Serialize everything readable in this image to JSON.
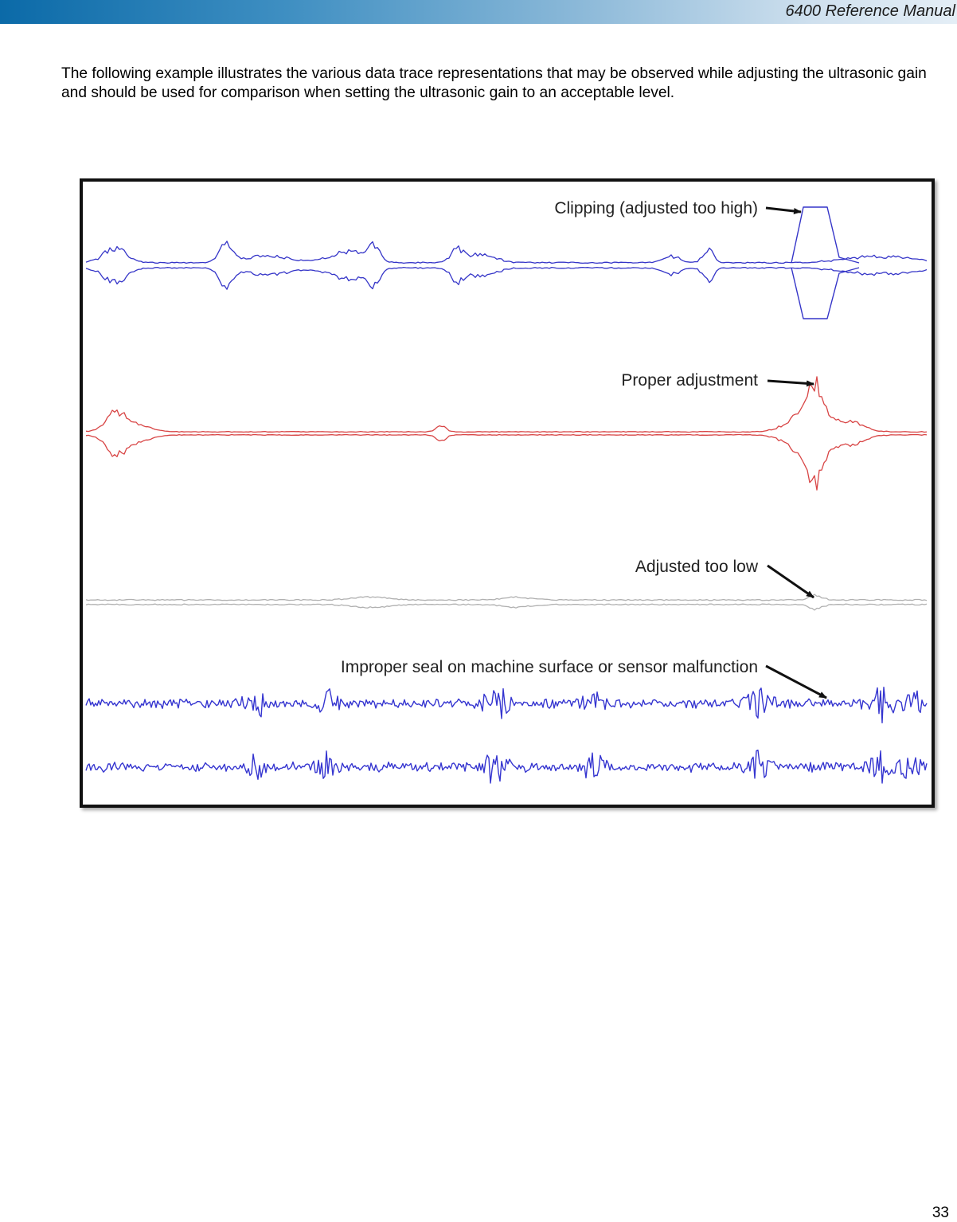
{
  "header": {
    "title": "6400 Reference Manual"
  },
  "intro_text": "The following example illustrates the various data trace representations that may be observed while adjusting the ultrasonic gain and should be used for comparison when setting the ultrasonic gain to an acceptable level.",
  "figure": {
    "traces": [
      {
        "label": "Clipping (adjusted too high)",
        "color": "#3535c8"
      },
      {
        "label": "Proper adjustment",
        "color": "#d84545"
      },
      {
        "label": "Adjusted too low",
        "color": "#b0b0b0"
      },
      {
        "label": "Improper seal on machine surface or sensor malfunction",
        "color": "#3535d0"
      }
    ]
  },
  "footer": {
    "page_number": "33"
  }
}
